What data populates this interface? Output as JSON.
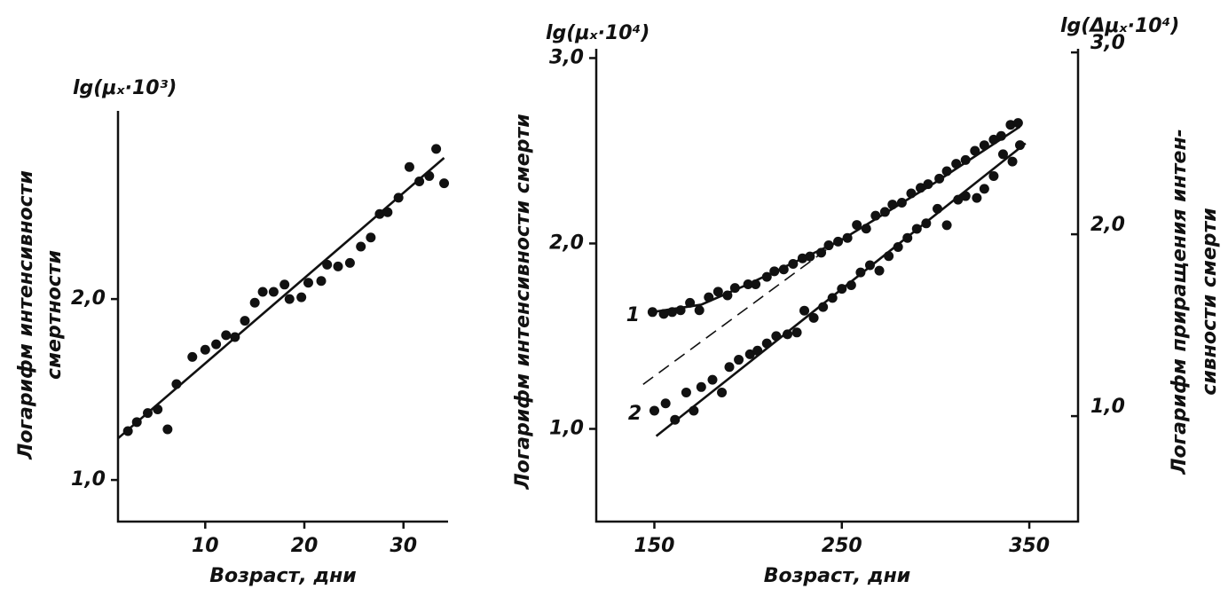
{
  "chart_data": [
    {
      "type": "scatter",
      "y_unit": "lg(μₓ·10³)",
      "ylabel": [
        "Логарифм интенсивности",
        "смертности"
      ],
      "xlabel": "Возраст, дни",
      "xlim": [
        1.2,
        34.5
      ],
      "xticks": [
        10,
        20,
        30
      ],
      "ylim": [
        0.77,
        3.04
      ],
      "yticks": [
        {
          "value": 1,
          "label": "1,0"
        },
        {
          "value": 2,
          "label": "2,0"
        }
      ],
      "grid": false,
      "series": [
        {
          "mode": "markers",
          "color": "#111111",
          "x": [
            2.2,
            3.1,
            4.2,
            5.2,
            6.2,
            7.1,
            8.7,
            10.0,
            11.1,
            12.1,
            13.0,
            14.0,
            15.0,
            15.8,
            16.9,
            18.0,
            18.5,
            19.7,
            20.4,
            21.7,
            22.3,
            23.4,
            24.6,
            25.7,
            26.7,
            27.6,
            28.4,
            29.5,
            30.6,
            31.6,
            32.6,
            33.3,
            34.1
          ],
          "values": [
            1.27,
            1.32,
            1.37,
            1.39,
            1.28,
            1.53,
            1.68,
            1.72,
            1.75,
            1.8,
            1.79,
            1.88,
            1.98,
            2.04,
            2.04,
            2.08,
            2.0,
            2.01,
            2.09,
            2.1,
            2.19,
            2.18,
            2.2,
            2.29,
            2.34,
            2.47,
            2.48,
            2.56,
            2.73,
            2.65,
            2.68,
            2.83,
            2.64
          ]
        },
        {
          "mode": "line",
          "color": "#111111",
          "x": [
            1.2,
            34.1
          ],
          "values": [
            1.23,
            2.78
          ]
        }
      ]
    },
    {
      "type": "scatter",
      "y_unit": "lg(μₓ·10⁴)",
      "y2_unit": "lg(Δμₓ·10⁴)",
      "ylabel": [
        "Логарифм интенсивности смерти"
      ],
      "y2label": [
        "Логарифм приращения интен-",
        "сивности смерти"
      ],
      "xlabel": "Возраст, дни",
      "xlim": [
        119,
        376
      ],
      "xticks": [
        150,
        250,
        350
      ],
      "ylim": [
        0.5,
        3.05
      ],
      "yticks": [
        {
          "value": 1,
          "label": "1,0"
        },
        {
          "value": 2,
          "label": "2,0"
        },
        {
          "value": 3,
          "label": "3,0"
        }
      ],
      "y2lim": [
        0.42,
        3.02
      ],
      "y2ticks": [
        {
          "value": 1,
          "label": "1,0"
        },
        {
          "value": 2,
          "label": "2,0"
        },
        {
          "value": 3,
          "label": "3,0"
        }
      ],
      "grid": false,
      "series": [
        {
          "mode": "markers",
          "color": "#111111",
          "label": "1",
          "x": [
            149,
            155,
            159.5,
            164,
            169,
            174,
            179,
            184,
            189,
            193,
            200,
            204,
            210,
            214,
            219,
            224,
            229,
            233,
            239,
            243,
            248,
            253,
            258,
            263,
            268,
            273,
            277,
            282,
            287,
            292,
            296,
            302,
            306,
            311,
            316,
            321,
            326,
            331,
            335,
            340,
            344
          ],
          "values": [
            1.63,
            1.62,
            1.63,
            1.64,
            1.68,
            1.64,
            1.71,
            1.74,
            1.72,
            1.76,
            1.78,
            1.78,
            1.82,
            1.85,
            1.86,
            1.89,
            1.92,
            1.93,
            1.95,
            1.99,
            2.01,
            2.03,
            2.1,
            2.08,
            2.15,
            2.17,
            2.21,
            2.22,
            2.27,
            2.3,
            2.32,
            2.35,
            2.39,
            2.43,
            2.45,
            2.5,
            2.53,
            2.56,
            2.58,
            2.64,
            2.65
          ]
        },
        {
          "mode": "line",
          "color": "#111111",
          "x": [
            149,
            175,
            200,
            250,
            300,
            345
          ],
          "values": [
            1.63,
            1.67,
            1.78,
            2.02,
            2.33,
            2.63
          ]
        },
        {
          "mode": "dashed",
          "color": "#111111",
          "x": [
            144,
            253
          ],
          "values": [
            1.24,
            2.05
          ]
        },
        {
          "mode": "markers",
          "color": "#111111",
          "axis": "y2",
          "label": "2",
          "x": [
            150,
            156,
            161,
            167,
            171,
            175,
            181,
            186,
            190,
            195,
            201,
            205,
            210,
            215,
            221,
            226,
            230,
            235,
            240,
            245,
            250,
            255,
            260,
            265,
            270,
            275,
            280,
            285,
            290,
            295,
            301,
            306,
            312,
            316,
            322,
            326,
            331,
            336,
            341,
            345
          ],
          "values": [
            1.03,
            1.07,
            0.98,
            1.13,
            1.03,
            1.16,
            1.2,
            1.13,
            1.27,
            1.31,
            1.34,
            1.36,
            1.4,
            1.44,
            1.45,
            1.46,
            1.58,
            1.54,
            1.6,
            1.65,
            1.7,
            1.72,
            1.79,
            1.83,
            1.8,
            1.88,
            1.93,
            1.98,
            2.03,
            2.06,
            2.14,
            2.05,
            2.19,
            2.21,
            2.2,
            2.25,
            2.32,
            2.44,
            2.4,
            2.49
          ]
        },
        {
          "mode": "line",
          "color": "#111111",
          "axis": "y2",
          "x": [
            151,
            348
          ],
          "values": [
            0.89,
            2.5
          ]
        }
      ]
    }
  ]
}
